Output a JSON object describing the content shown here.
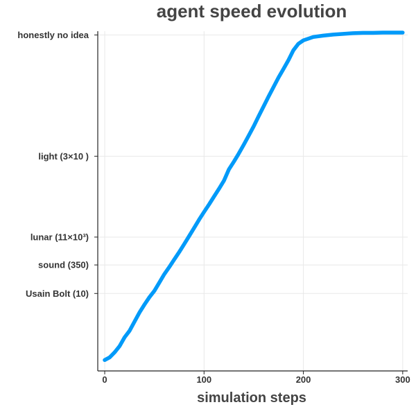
{
  "chart_data": {
    "type": "line",
    "title": "agent speed evolution",
    "xlabel": "simulation steps",
    "ylabel": "",
    "xlim": [
      -7,
      305
    ],
    "ylim": [
      0,
      100
    ],
    "grid": true,
    "legend": "none",
    "line_color": "#009AF9",
    "x_ticks": [
      {
        "value": 0,
        "label": "0"
      },
      {
        "value": 100,
        "label": "100"
      },
      {
        "value": 200,
        "label": "200"
      },
      {
        "value": 300,
        "label": "300"
      }
    ],
    "y_ticks": [
      {
        "value": 98.9,
        "label": "honestly no idea"
      },
      {
        "value": 63.2,
        "label": "light (3×10  )"
      },
      {
        "value": 39.4,
        "label": "lunar (11×10³)"
      },
      {
        "value": 31.2,
        "label": "sound (350)"
      },
      {
        "value": 22.8,
        "label": "Usain Bolt (10)"
      }
    ],
    "series": [
      {
        "x": [
          0,
          5,
          10,
          15,
          20,
          25,
          30,
          35,
          40,
          45,
          50,
          55,
          60,
          65,
          70,
          75,
          80,
          85,
          90,
          95,
          100,
          105,
          110,
          115,
          120,
          125,
          130,
          135,
          140,
          145,
          150,
          155,
          160,
          165,
          170,
          175,
          180,
          185,
          190,
          195,
          200,
          210,
          220,
          230,
          240,
          250,
          260,
          270,
          280,
          290,
          300
        ],
        "values": [
          3.2,
          4.0,
          5.5,
          7.3,
          9.9,
          11.8,
          14.5,
          17.2,
          19.5,
          21.7,
          23.6,
          26.0,
          28.5,
          30.6,
          32.8,
          35.0,
          37.3,
          39.7,
          42.1,
          44.5,
          46.8,
          49.0,
          51.3,
          53.6,
          56.0,
          59.3,
          61.6,
          64.0,
          66.6,
          69.3,
          72.0,
          75.0,
          77.9,
          80.8,
          83.6,
          86.4,
          88.9,
          91.5,
          94.4,
          96.3,
          97.3,
          98.3,
          98.7,
          99.0,
          99.2,
          99.4,
          99.5,
          99.5,
          99.6,
          99.6,
          99.6
        ]
      }
    ]
  }
}
